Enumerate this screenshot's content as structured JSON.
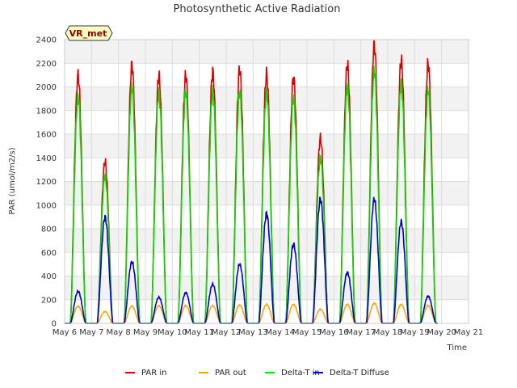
{
  "chart_data": {
    "type": "line",
    "title": "Photosynthetic Active Radiation",
    "xlabel": "Time",
    "ylabel": "PAR (umol/m2/s)",
    "badge": "VR_met",
    "xlim": [
      6,
      21
    ],
    "ylim": [
      0,
      2400
    ],
    "x_ticks": [
      6,
      7,
      8,
      9,
      10,
      11,
      12,
      13,
      14,
      15,
      16,
      17,
      18,
      19,
      20,
      21
    ],
    "x_tick_labels": [
      "May 6",
      "May 7",
      "May 8",
      "May 9",
      "May 10",
      "May 11",
      "May 12",
      "May 13",
      "May 14",
      "May 15",
      "May 16",
      "May 17",
      "May 18",
      "May 19",
      "May 20",
      "May 21"
    ],
    "y_ticks": [
      0,
      200,
      400,
      600,
      800,
      1000,
      1200,
      1400,
      1600,
      1800,
      2000,
      2200,
      2400
    ],
    "grid": true,
    "legend_position": "bottom",
    "x_unit": "day of May (daily peak values at local noon)",
    "days": [
      6.5,
      7.5,
      8.5,
      9.5,
      10.5,
      11.5,
      12.5,
      13.5,
      14.5,
      15.5,
      16.5,
      17.5,
      18.5,
      19.5
    ],
    "series": [
      {
        "name": "PAR in",
        "color": "#dd0000",
        "daily_peak": [
          2100,
          1370,
          2190,
          2100,
          2100,
          2130,
          2150,
          2110,
          2080,
          1570,
          2190,
          2360,
          2230,
          2200
        ]
      },
      {
        "name": "PAR out",
        "color": "#ffa500",
        "daily_peak": [
          145,
          100,
          145,
          150,
          150,
          150,
          155,
          160,
          160,
          120,
          160,
          170,
          160,
          150
        ]
      },
      {
        "name": "Delta-T in",
        "color": "#00dd00",
        "daily_peak": [
          1920,
          1250,
          2000,
          1950,
          1960,
          1960,
          1960,
          1950,
          1900,
          1400,
          2000,
          2140,
          2030,
          1980
        ]
      },
      {
        "name": "Delta-T Diffuse",
        "color": "#0000cc",
        "daily_peak": [
          270,
          900,
          520,
          220,
          260,
          330,
          500,
          930,
          670,
          1050,
          430,
          1050,
          860,
          230
        ]
      }
    ]
  }
}
